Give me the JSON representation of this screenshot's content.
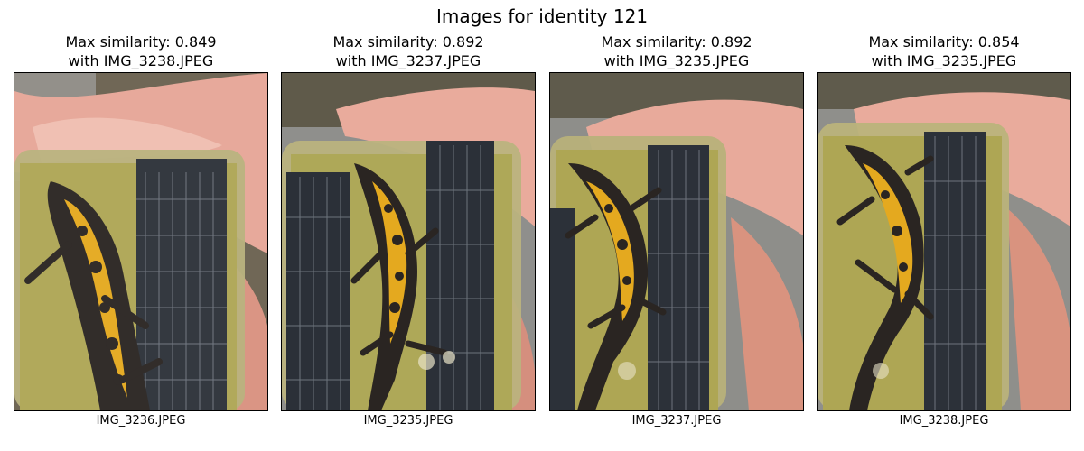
{
  "figure": {
    "title": "Images for identity 121"
  },
  "panels": [
    {
      "title_line1": "Max similarity: 0.849",
      "title_line2": "with IMG_3238.JPEG",
      "caption": "IMG_3236.JPEG"
    },
    {
      "title_line1": "Max similarity: 0.892",
      "title_line2": "with IMG_3237.JPEG",
      "caption": "IMG_3235.JPEG"
    },
    {
      "title_line1": "Max similarity: 0.892",
      "title_line2": "with IMG_3235.JPEG",
      "caption": "IMG_3237.JPEG"
    },
    {
      "title_line1": "Max similarity: 0.854",
      "title_line2": "with IMG_3235.JPEG",
      "caption": "IMG_3238.JPEG"
    }
  ],
  "colors": {
    "skin": "#e8a89a",
    "skin_shadow": "#c98576",
    "container": "#b8b27a",
    "water": "#a9a35a",
    "grid": "#2b3038",
    "newt_dark": "#2a2522",
    "newt_yellow": "#e4a91f",
    "pavement": "#9a9a98"
  }
}
